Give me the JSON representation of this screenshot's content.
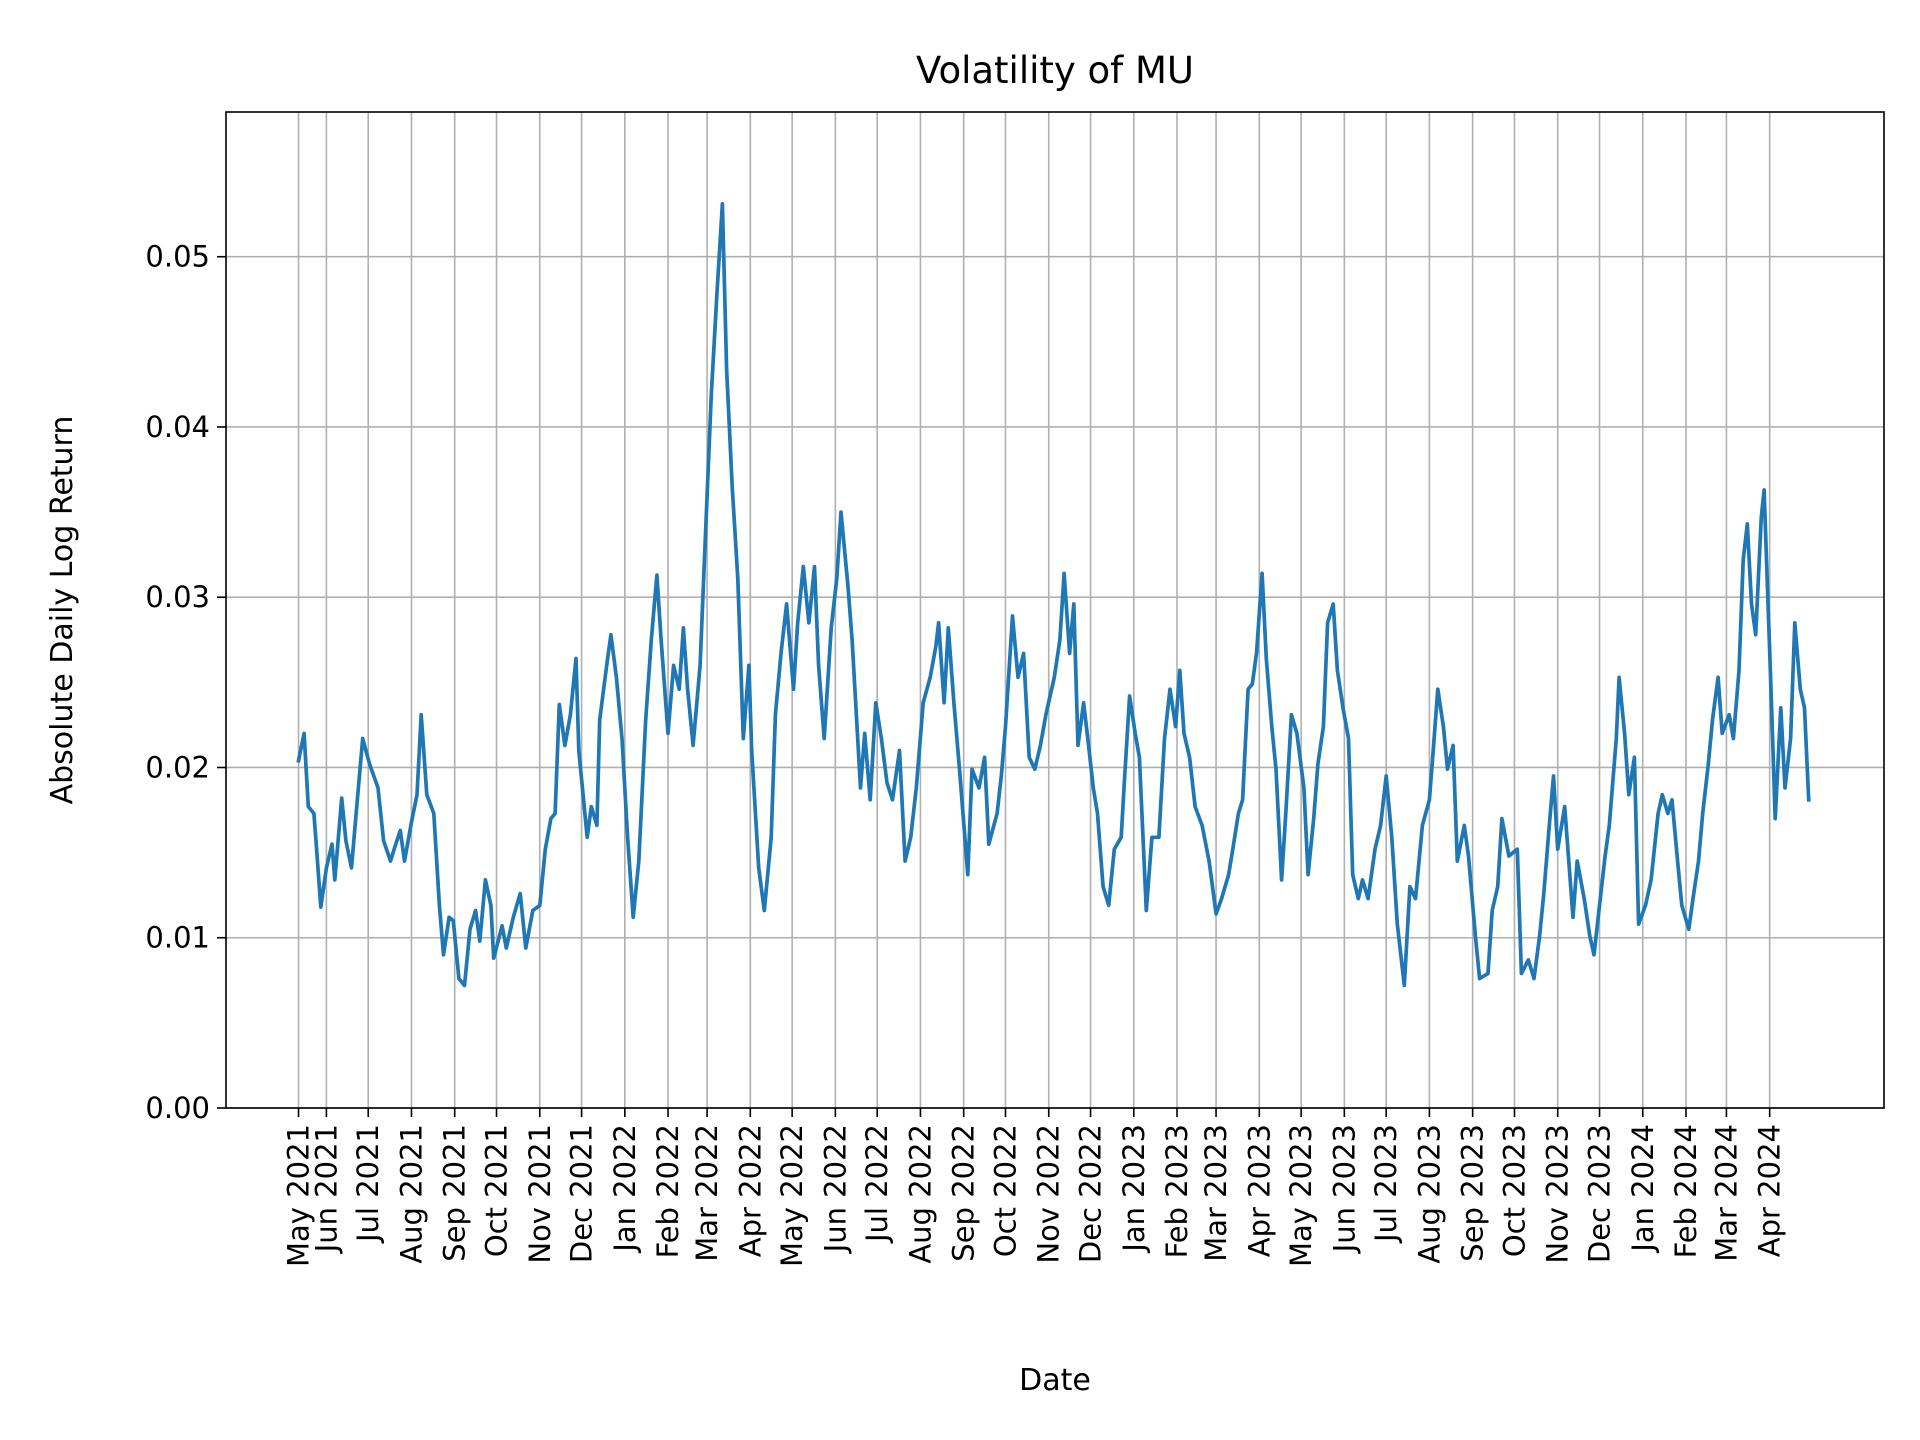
{
  "chart_data": {
    "type": "line",
    "title": "Volatility of MU",
    "xlabel": "Date",
    "ylabel": "Absolute Daily Log Return",
    "xlim": [
      "2021-03-21",
      "2024-06-22"
    ],
    "ylim": [
      0,
      0.0585
    ],
    "grid": true,
    "line_color": "#1f77b4",
    "yticks": [
      {
        "value": 0.0,
        "label": "0.00"
      },
      {
        "value": 0.01,
        "label": "0.01"
      },
      {
        "value": 0.02,
        "label": "0.02"
      },
      {
        "value": 0.03,
        "label": "0.03"
      },
      {
        "value": 0.04,
        "label": "0.04"
      },
      {
        "value": 0.05,
        "label": "0.05"
      }
    ],
    "xticks": [
      {
        "date": "2021-05-12",
        "label": "May 2021"
      },
      {
        "date": "2021-06-01",
        "label": "Jun 2021"
      },
      {
        "date": "2021-07-01",
        "label": "Jul 2021"
      },
      {
        "date": "2021-08-01",
        "label": "Aug 2021"
      },
      {
        "date": "2021-09-01",
        "label": "Sep 2021"
      },
      {
        "date": "2021-10-01",
        "label": "Oct 2021"
      },
      {
        "date": "2021-11-01",
        "label": "Nov 2021"
      },
      {
        "date": "2021-12-01",
        "label": "Dec 2021"
      },
      {
        "date": "2022-01-01",
        "label": "Jan 2022"
      },
      {
        "date": "2022-02-01",
        "label": "Feb 2022"
      },
      {
        "date": "2022-03-01",
        "label": "Mar 2022"
      },
      {
        "date": "2022-04-01",
        "label": "Apr 2022"
      },
      {
        "date": "2022-05-01",
        "label": "May 2022"
      },
      {
        "date": "2022-06-01",
        "label": "Jun 2022"
      },
      {
        "date": "2022-07-01",
        "label": "Jul 2022"
      },
      {
        "date": "2022-08-01",
        "label": "Aug 2022"
      },
      {
        "date": "2022-09-01",
        "label": "Sep 2022"
      },
      {
        "date": "2022-10-01",
        "label": "Oct 2022"
      },
      {
        "date": "2022-11-01",
        "label": "Nov 2022"
      },
      {
        "date": "2022-12-01",
        "label": "Dec 2022"
      },
      {
        "date": "2023-01-01",
        "label": "Jan 2023"
      },
      {
        "date": "2023-02-01",
        "label": "Feb 2023"
      },
      {
        "date": "2023-03-01",
        "label": "Mar 2023"
      },
      {
        "date": "2023-04-01",
        "label": "Apr 2023"
      },
      {
        "date": "2023-05-01",
        "label": "May 2023"
      },
      {
        "date": "2023-06-01",
        "label": "Jun 2023"
      },
      {
        "date": "2023-07-01",
        "label": "Jul 2023"
      },
      {
        "date": "2023-08-01",
        "label": "Aug 2023"
      },
      {
        "date": "2023-09-01",
        "label": "Sep 2023"
      },
      {
        "date": "2023-10-01",
        "label": "Oct 2023"
      },
      {
        "date": "2023-11-01",
        "label": "Nov 2023"
      },
      {
        "date": "2023-12-01",
        "label": "Dec 2023"
      },
      {
        "date": "2024-01-01",
        "label": "Jan 2024"
      },
      {
        "date": "2024-02-01",
        "label": "Feb 2024"
      },
      {
        "date": "2024-03-01",
        "label": "Mar 2024"
      },
      {
        "date": "2024-04-01",
        "label": "Apr 2024"
      }
    ],
    "series": [
      {
        "x": [
          "2021-05-12",
          "2021-05-16",
          "2021-05-19",
          "2021-05-23",
          "2021-05-25",
          "2021-05-28",
          "2021-06-01",
          "2021-06-05",
          "2021-06-07",
          "2021-06-12",
          "2021-06-15",
          "2021-06-19",
          "2021-06-22",
          "2021-06-27",
          "2021-06-30",
          "2021-07-02",
          "2021-07-08",
          "2021-07-12",
          "2021-07-17",
          "2021-07-20",
          "2021-07-24",
          "2021-07-27",
          "2021-08-01",
          "2021-08-05",
          "2021-08-08",
          "2021-08-12",
          "2021-08-17",
          "2021-08-21",
          "2021-08-24",
          "2021-08-28",
          "2021-08-31",
          "2021-09-04",
          "2021-09-08",
          "2021-09-12",
          "2021-09-16",
          "2021-09-19",
          "2021-09-23",
          "2021-09-27",
          "2021-09-29",
          "2021-10-05",
          "2021-10-08",
          "2021-10-13",
          "2021-10-18",
          "2021-10-22",
          "2021-10-27",
          "2021-11-01",
          "2021-11-05",
          "2021-11-09",
          "2021-11-12",
          "2021-11-15",
          "2021-11-19",
          "2021-11-23",
          "2021-11-27",
          "2021-11-29",
          "2021-12-05",
          "2021-12-08",
          "2021-12-12",
          "2021-12-14",
          "2021-12-19",
          "2021-12-22",
          "2021-12-26",
          "2021-12-30",
          "2022-01-03",
          "2022-01-07",
          "2022-01-11",
          "2022-01-16",
          "2022-01-20",
          "2022-01-24",
          "2022-01-27",
          "2022-02-01",
          "2022-02-05",
          "2022-02-09",
          "2022-02-12",
          "2022-02-15",
          "2022-02-19",
          "2022-02-24",
          "2022-02-28",
          "2022-03-04",
          "2022-03-08",
          "2022-03-12",
          "2022-03-15",
          "2022-03-19",
          "2022-03-23",
          "2022-03-27",
          "2022-03-31",
          "2022-04-02",
          "2022-04-07",
          "2022-04-11",
          "2022-04-16",
          "2022-04-19",
          "2022-04-23",
          "2022-04-27",
          "2022-05-02",
          "2022-05-05",
          "2022-05-09",
          "2022-05-13",
          "2022-05-17",
          "2022-05-20",
          "2022-05-24",
          "2022-05-29",
          "2022-06-02",
          "2022-06-05",
          "2022-06-10",
          "2022-06-13",
          "2022-06-19",
          "2022-06-22",
          "2022-06-26",
          "2022-06-30",
          "2022-07-04",
          "2022-07-08",
          "2022-07-12",
          "2022-07-17",
          "2022-07-21",
          "2022-07-25",
          "2022-07-29",
          "2022-08-03",
          "2022-08-08",
          "2022-08-12",
          "2022-08-14",
          "2022-08-18",
          "2022-08-21",
          "2022-08-25",
          "2022-08-29",
          "2022-09-04",
          "2022-09-07",
          "2022-09-12",
          "2022-09-16",
          "2022-09-19",
          "2022-09-25",
          "2022-09-28",
          "2022-10-01",
          "2022-10-06",
          "2022-10-10",
          "2022-10-14",
          "2022-10-18",
          "2022-10-22",
          "2022-10-26",
          "2022-10-30",
          "2022-11-05",
          "2022-11-09",
          "2022-11-12",
          "2022-11-16",
          "2022-11-19",
          "2022-11-22",
          "2022-11-26",
          "2022-11-29",
          "2022-12-03",
          "2022-12-06",
          "2022-12-10",
          "2022-12-14",
          "2022-12-18",
          "2022-12-23",
          "2022-12-25",
          "2022-12-29",
          "2023-01-02",
          "2023-01-05",
          "2023-01-10",
          "2023-01-14",
          "2023-01-19",
          "2023-01-23",
          "2023-01-27",
          "2023-01-31",
          "2023-02-03",
          "2023-02-06",
          "2023-02-10",
          "2023-02-14",
          "2023-02-19",
          "2023-02-24",
          "2023-03-01",
          "2023-03-05",
          "2023-03-10",
          "2023-03-13",
          "2023-03-17",
          "2023-03-20",
          "2023-03-24",
          "2023-03-27",
          "2023-03-30",
          "2023-04-03",
          "2023-04-06",
          "2023-04-10",
          "2023-04-13",
          "2023-04-17",
          "2023-04-20",
          "2023-04-24",
          "2023-04-28",
          "2023-05-03",
          "2023-05-06",
          "2023-05-10",
          "2023-05-13",
          "2023-05-17",
          "2023-05-20",
          "2023-05-24",
          "2023-05-27",
          "2023-05-31",
          "2023-06-04",
          "2023-06-07",
          "2023-06-11",
          "2023-06-14",
          "2023-06-18",
          "2023-06-23",
          "2023-06-27",
          "2023-07-01",
          "2023-07-05",
          "2023-07-09",
          "2023-07-14",
          "2023-07-18",
          "2023-07-22",
          "2023-07-27",
          "2023-08-01",
          "2023-08-04",
          "2023-08-07",
          "2023-08-11",
          "2023-08-14",
          "2023-08-18",
          "2023-08-21",
          "2023-08-26",
          "2023-08-29",
          "2023-09-03",
          "2023-09-06",
          "2023-09-12",
          "2023-09-15",
          "2023-09-19",
          "2023-09-22",
          "2023-09-27",
          "2023-10-03",
          "2023-10-06",
          "2023-10-11",
          "2023-10-15",
          "2023-10-19",
          "2023-10-22",
          "2023-10-26",
          "2023-10-29",
          "2023-11-01",
          "2023-11-06",
          "2023-11-12",
          "2023-11-15",
          "2023-11-20",
          "2023-11-24",
          "2023-11-27",
          "2023-12-01",
          "2023-12-05",
          "2023-12-08",
          "2023-12-13",
          "2023-12-15",
          "2023-12-19",
          "2023-12-22",
          "2023-12-26",
          "2023-12-29",
          "2024-01-03",
          "2024-01-07",
          "2024-01-12",
          "2024-01-15",
          "2024-01-19",
          "2024-01-22",
          "2024-01-26",
          "2024-01-29",
          "2024-02-03",
          "2024-02-06",
          "2024-02-10",
          "2024-02-13",
          "2024-02-17",
          "2024-02-20",
          "2024-02-24",
          "2024-02-27",
          "2024-03-03",
          "2024-03-06",
          "2024-03-10",
          "2024-03-13",
          "2024-03-16",
          "2024-03-19",
          "2024-03-22",
          "2024-03-26",
          "2024-03-28",
          "2024-04-02",
          "2024-04-05",
          "2024-04-09",
          "2024-04-12",
          "2024-04-16",
          "2024-04-19",
          "2024-04-23",
          "2024-04-26",
          "2024-04-29"
        ],
        "y": [
          0.0204,
          0.022,
          0.0177,
          0.0173,
          0.0152,
          0.0118,
          0.0141,
          0.0155,
          0.0134,
          0.0182,
          0.0157,
          0.0141,
          0.017,
          0.0217,
          0.0208,
          0.0202,
          0.0188,
          0.0157,
          0.0145,
          0.0153,
          0.0163,
          0.0145,
          0.0168,
          0.0184,
          0.0231,
          0.0184,
          0.0173,
          0.0119,
          0.009,
          0.0112,
          0.011,
          0.0076,
          0.0072,
          0.0105,
          0.0116,
          0.0098,
          0.0134,
          0.0119,
          0.0088,
          0.0107,
          0.0094,
          0.0112,
          0.0126,
          0.0094,
          0.0116,
          0.0119,
          0.0152,
          0.017,
          0.0173,
          0.0237,
          0.0213,
          0.0231,
          0.0264,
          0.021,
          0.0159,
          0.0177,
          0.0166,
          0.0228,
          0.026,
          0.0278,
          0.0253,
          0.0217,
          0.0159,
          0.0112,
          0.0145,
          0.0228,
          0.0275,
          0.0313,
          0.0275,
          0.022,
          0.026,
          0.0246,
          0.0282,
          0.0246,
          0.0213,
          0.026,
          0.034,
          0.0419,
          0.0477,
          0.0531,
          0.0434,
          0.0365,
          0.0311,
          0.0217,
          0.026,
          0.021,
          0.0141,
          0.0116,
          0.0159,
          0.0231,
          0.0267,
          0.0296,
          0.0246,
          0.0285,
          0.0318,
          0.0285,
          0.0318,
          0.026,
          0.0217,
          0.0282,
          0.0311,
          0.035,
          0.0307,
          0.0275,
          0.0188,
          0.022,
          0.0181,
          0.0238,
          0.0217,
          0.0191,
          0.0181,
          0.021,
          0.0145,
          0.0159,
          0.0188,
          0.0238,
          0.0253,
          0.0271,
          0.0285,
          0.0238,
          0.0282,
          0.0238,
          0.0199,
          0.0137,
          0.0199,
          0.0188,
          0.0206,
          0.0155,
          0.0173,
          0.0195,
          0.0224,
          0.0289,
          0.0253,
          0.0267,
          0.0206,
          0.0199,
          0.0213,
          0.0231,
          0.0253,
          0.0275,
          0.0314,
          0.0267,
          0.0296,
          0.0213,
          0.0238,
          0.0217,
          0.0188,
          0.0173,
          0.013,
          0.0119,
          0.0152,
          0.0159,
          0.0188,
          0.0242,
          0.022,
          0.0206,
          0.0116,
          0.0159,
          0.0159,
          0.0217,
          0.0246,
          0.0224,
          0.0257,
          0.022,
          0.0206,
          0.0177,
          0.0166,
          0.0145,
          0.0114,
          0.0123,
          0.0137,
          0.0152,
          0.0173,
          0.0181,
          0.0246,
          0.0249,
          0.0267,
          0.0314,
          0.0264,
          0.0224,
          0.0199,
          0.0134,
          0.0173,
          0.0231,
          0.022,
          0.0188,
          0.0137,
          0.017,
          0.0202,
          0.0224,
          0.0285,
          0.0296,
          0.0257,
          0.0235,
          0.0217,
          0.0137,
          0.0123,
          0.0134,
          0.0123,
          0.0152,
          0.0166,
          0.0195,
          0.0159,
          0.0108,
          0.0072,
          0.013,
          0.0123,
          0.0166,
          0.0181,
          0.0213,
          0.0246,
          0.0224,
          0.0199,
          0.0213,
          0.0145,
          0.0166,
          0.0148,
          0.0101,
          0.0076,
          0.0079,
          0.0116,
          0.013,
          0.017,
          0.0148,
          0.0152,
          0.0079,
          0.0087,
          0.0076,
          0.0101,
          0.0126,
          0.0166,
          0.0195,
          0.0152,
          0.0177,
          0.0112,
          0.0145,
          0.0123,
          0.0101,
          0.009,
          0.0119,
          0.0148,
          0.0166,
          0.0217,
          0.0253,
          0.022,
          0.0184,
          0.0206,
          0.0108,
          0.0119,
          0.0134,
          0.0173,
          0.0184,
          0.0173,
          0.0181,
          0.0145,
          0.0119,
          0.0105,
          0.0123,
          0.0145,
          0.0173,
          0.0202,
          0.0228,
          0.0253,
          0.022,
          0.0231,
          0.0217,
          0.0257,
          0.0322,
          0.0343,
          0.0296,
          0.0278,
          0.0347,
          0.0363,
          0.0246,
          0.017,
          0.0235,
          0.0188,
          0.0217,
          0.0285,
          0.0246,
          0.0235,
          0.0181
        ]
      }
    ]
  }
}
